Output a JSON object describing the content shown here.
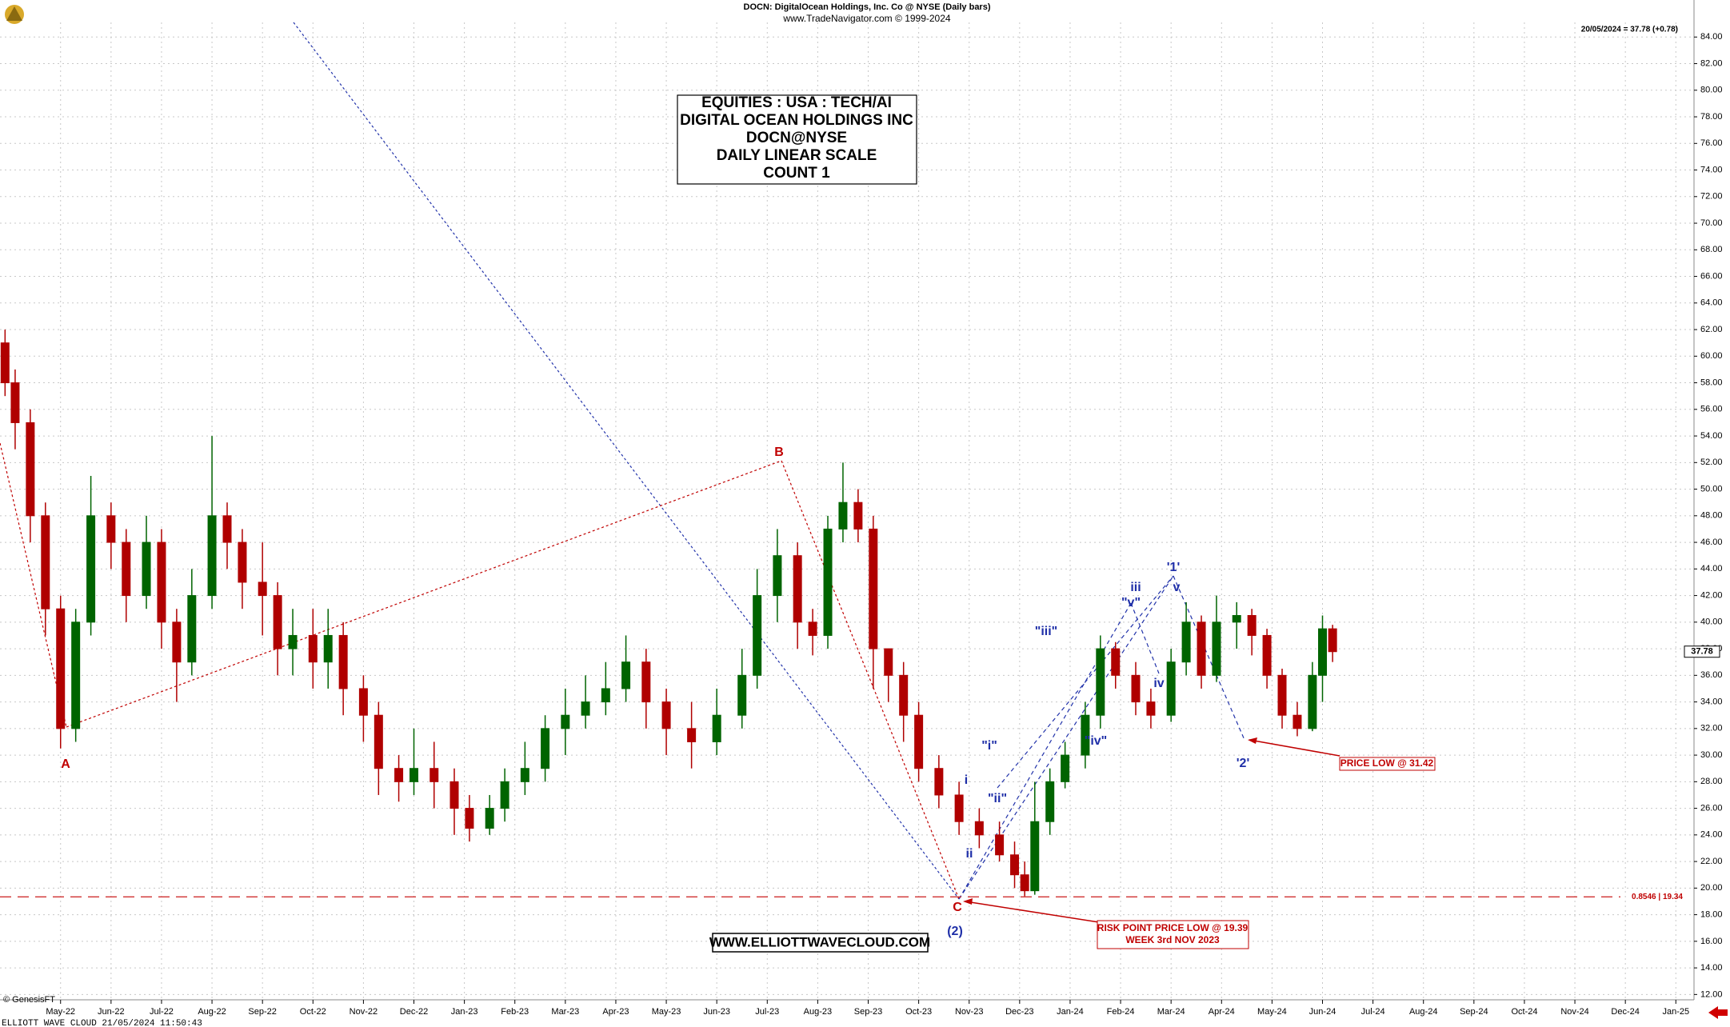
{
  "chart_data": {
    "type": "candlestick",
    "header_title": "DOCN:  DigitalOcean Holdings, Inc. Co @ NYSE  (Daily bars)",
    "header_source": "www.TradeNavigator.com © 1999-2024",
    "last_price_note": "20/05/2024 = 37.78 (+0.78)",
    "info_box": [
      "EQUITIES : USA : TECH/AI",
      "DIGITAL OCEAN HOLDINGS INC",
      "DOCN@NYSE",
      "DAILY LINEAR SCALE",
      "COUNT 1"
    ],
    "website": "WWW.ELLIOTTWAVECLOUD.COM",
    "copyright": "© GenesisFT",
    "footer": "ELLIOTT WAVE CLOUD   21/05/2024 11:50:43",
    "wave_labels": [
      "A",
      "B",
      "C",
      "(2)",
      "i",
      "ii",
      "\"i\"",
      "\"ii\"",
      "\"iii\"",
      "\"iv\"",
      "iii",
      "\"v\"",
      "iv",
      "'1'",
      "v",
      "'2'"
    ],
    "price_low_note": "PRICE LOW @ 31.42",
    "risk_note": [
      "RISK POINT PRICE LOW @ 19.39",
      "WEEK 3rd NOV 2023"
    ],
    "risk_level": 19.34,
    "risk_level_label": "0.8546 | 19.34",
    "last_price": 37.78,
    "up_color": "#006400",
    "down_color": "#b00000",
    "grid": true,
    "xlim": [
      -1.2,
      32.36
    ],
    "ylim": [
      11.6,
      85.1
    ],
    "xticks": [
      {
        "value": 0,
        "label": "May-22"
      },
      {
        "value": 1,
        "label": "Jun-22"
      },
      {
        "value": 2,
        "label": "Jul-22"
      },
      {
        "value": 3,
        "label": "Aug-22"
      },
      {
        "value": 4,
        "label": "Sep-22"
      },
      {
        "value": 5,
        "label": "Oct-22"
      },
      {
        "value": 6,
        "label": "Nov-22"
      },
      {
        "value": 7,
        "label": "Dec-22"
      },
      {
        "value": 8,
        "label": "Jan-23"
      },
      {
        "value": 9,
        "label": "Feb-23"
      },
      {
        "value": 10,
        "label": "Mar-23"
      },
      {
        "value": 11,
        "label": "Apr-23"
      },
      {
        "value": 12,
        "label": "May-23"
      },
      {
        "value": 13,
        "label": "Jun-23"
      },
      {
        "value": 14,
        "label": "Jul-23"
      },
      {
        "value": 15,
        "label": "Aug-23"
      },
      {
        "value": 16,
        "label": "Sep-23"
      },
      {
        "value": 17,
        "label": "Oct-23"
      },
      {
        "value": 18,
        "label": "Nov-23"
      },
      {
        "value": 19,
        "label": "Dec-23"
      },
      {
        "value": 20,
        "label": "Jan-24"
      },
      {
        "value": 21,
        "label": "Feb-24"
      },
      {
        "value": 22,
        "label": "Mar-24"
      },
      {
        "value": 23,
        "label": "Apr-24"
      },
      {
        "value": 24,
        "label": "May-24"
      },
      {
        "value": 25,
        "label": "Jun-24"
      },
      {
        "value": 26,
        "label": "Jul-24"
      },
      {
        "value": 27,
        "label": "Aug-24"
      },
      {
        "value": 28,
        "label": "Sep-24"
      },
      {
        "value": 29,
        "label": "Oct-24"
      },
      {
        "value": 30,
        "label": "Nov-24"
      },
      {
        "value": 31,
        "label": "Dec-24"
      },
      {
        "value": 32,
        "label": "Jan-25"
      }
    ],
    "yticks": [
      {
        "value": 12,
        "label": "12.00"
      },
      {
        "value": 14,
        "label": "14.00"
      },
      {
        "value": 16,
        "label": "16.00"
      },
      {
        "value": 18,
        "label": "18.00"
      },
      {
        "value": 20,
        "label": "20.00"
      },
      {
        "value": 22,
        "label": "22.00"
      },
      {
        "value": 24,
        "label": "24.00"
      },
      {
        "value": 26,
        "label": "26.00"
      },
      {
        "value": 28,
        "label": "28.00"
      },
      {
        "value": 30,
        "label": "30.00"
      },
      {
        "value": 32,
        "label": "32.00"
      },
      {
        "value": 34,
        "label": "34.00"
      },
      {
        "value": 36,
        "label": "36.00"
      },
      {
        "value": 38,
        "label": "38.00"
      },
      {
        "value": 40,
        "label": "40.00"
      },
      {
        "value": 42,
        "label": "42.00"
      },
      {
        "value": 44,
        "label": "44.00"
      },
      {
        "value": 46,
        "label": "46.00"
      },
      {
        "value": 48,
        "label": "48.00"
      },
      {
        "value": 50,
        "label": "50.00"
      },
      {
        "value": 52,
        "label": "52.00"
      },
      {
        "value": 54,
        "label": "54.00"
      },
      {
        "value": 56,
        "label": "56.00"
      },
      {
        "value": 58,
        "label": "58.00"
      },
      {
        "value": 60,
        "label": "60.00"
      },
      {
        "value": 62,
        "label": "62.00"
      },
      {
        "value": 64,
        "label": "64.00"
      },
      {
        "value": 66,
        "label": "66.00"
      },
      {
        "value": 68,
        "label": "68.00"
      },
      {
        "value": 70,
        "label": "70.00"
      },
      {
        "value": 72,
        "label": "72.00"
      },
      {
        "value": 74,
        "label": "74.00"
      },
      {
        "value": 76,
        "label": "76.00"
      },
      {
        "value": 78,
        "label": "78.00"
      },
      {
        "value": 80,
        "label": "80.00"
      },
      {
        "value": 82,
        "label": "82.00"
      },
      {
        "value": 84,
        "label": "84.00"
      }
    ],
    "x": [
      -1.1,
      -0.9,
      -0.6,
      -0.3,
      0.0,
      0.3,
      0.6,
      1.0,
      1.3,
      1.7,
      2.0,
      2.3,
      2.6,
      3.0,
      3.3,
      3.6,
      4.0,
      4.3,
      4.6,
      5.0,
      5.3,
      5.6,
      6.0,
      6.3,
      6.7,
      7.0,
      7.4,
      7.8,
      8.1,
      8.5,
      8.8,
      9.2,
      9.6,
      10.0,
      10.4,
      10.8,
      11.2,
      11.6,
      12.0,
      12.5,
      13.0,
      13.5,
      13.8,
      14.2,
      14.6,
      14.9,
      15.2,
      15.5,
      15.8,
      16.1,
      16.4,
      16.7,
      17.0,
      17.4,
      17.8,
      18.2,
      18.6,
      18.9,
      19.1,
      19.3,
      19.6,
      19.9,
      20.3,
      20.6,
      20.9,
      21.3,
      21.6,
      22.0,
      22.3,
      22.6,
      22.9,
      23.3,
      23.6,
      23.9,
      24.2,
      24.5,
      24.8,
      25.0,
      25.2
    ],
    "open": [
      61,
      58,
      55,
      48,
      41,
      32,
      40,
      48,
      46,
      42,
      46,
      40,
      37,
      42,
      48,
      46,
      43,
      42,
      38,
      39,
      37,
      39,
      35,
      33,
      29,
      28,
      29,
      28,
      26,
      24.5,
      26,
      28,
      29,
      32,
      33,
      34,
      35,
      37,
      34,
      32,
      31,
      33,
      36,
      42,
      45,
      40,
      39,
      47,
      49,
      47,
      38,
      36,
      33,
      29,
      27,
      25,
      24,
      22.5,
      21,
      19.8,
      25,
      28,
      30,
      33,
      38,
      36,
      34,
      33,
      37,
      40,
      36,
      40,
      40.5,
      39,
      36,
      33,
      32,
      36,
      39.5
    ],
    "high": [
      62,
      59,
      56,
      49,
      42,
      41,
      51,
      49,
      47,
      48,
      47,
      41,
      44,
      54,
      49,
      47,
      46,
      43,
      41,
      41,
      41,
      40,
      36,
      34,
      30,
      32,
      31,
      29,
      27,
      27,
      29,
      31,
      33,
      35,
      36,
      37,
      39,
      38,
      35,
      34,
      35,
      38,
      44,
      47,
      46,
      41,
      48,
      52,
      50,
      48,
      38,
      37,
      34,
      30,
      28,
      26,
      25,
      23.5,
      22,
      28,
      29,
      31,
      34,
      39,
      38.5,
      37,
      35,
      38,
      41.5,
      40.5,
      42,
      41.5,
      41,
      39.5,
      36.5,
      34,
      37,
      40.5,
      39.8
    ],
    "low": [
      57,
      53,
      46,
      39,
      30.5,
      31,
      39,
      44,
      40,
      41,
      38,
      34,
      36,
      41,
      44,
      41,
      39,
      36,
      36,
      35,
      35,
      33,
      31,
      27,
      26.5,
      27,
      26,
      24,
      23.5,
      24,
      25,
      27,
      28,
      30,
      32,
      33,
      34,
      32,
      30,
      29,
      30,
      32,
      35,
      40,
      38,
      37.5,
      38,
      46,
      46,
      35,
      34,
      31,
      28,
      26,
      24,
      23,
      22,
      20,
      19.39,
      19.5,
      24,
      27.5,
      29,
      32,
      35,
      33,
      32,
      32.5,
      36,
      35,
      35.5,
      38,
      37.5,
      35,
      32,
      31.42,
      31.8,
      34,
      37
    ],
    "close": [
      58,
      55,
      48,
      41,
      32,
      40,
      48,
      46,
      42,
      46,
      40,
      37,
      42,
      48,
      46,
      43,
      42,
      38,
      39,
      37,
      39,
      35,
      33,
      29,
      28,
      29,
      28,
      26,
      24.5,
      26,
      28,
      29,
      32,
      33,
      34,
      35,
      37,
      34,
      32,
      31,
      33,
      36,
      42,
      45,
      40,
      39,
      47,
      49,
      47,
      38,
      36,
      33,
      29,
      27,
      25,
      24,
      22.5,
      21,
      19.8,
      25,
      28,
      30,
      33,
      38,
      36,
      34,
      33,
      37,
      40,
      36,
      40,
      40.5,
      39,
      36,
      33,
      32,
      36,
      39.5,
      37.78
    ]
  }
}
